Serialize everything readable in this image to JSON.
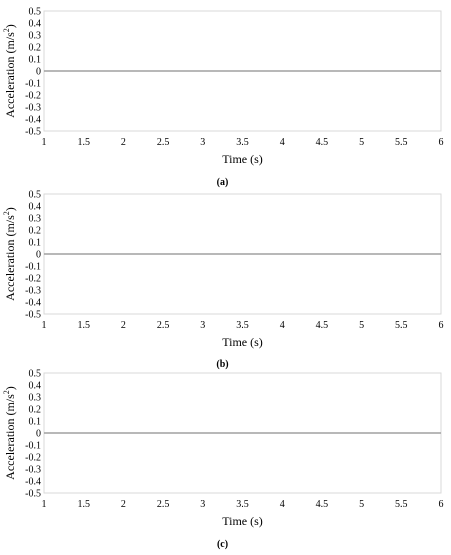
{
  "chart_data": [
    {
      "type": "line",
      "panel_label": "(a)",
      "xlabel": "Time (s)",
      "ylabel": "Acceleration (m/s",
      "ylabel_sup": "2",
      "ylabel_close": ")",
      "xlim": [
        1,
        6
      ],
      "ylim": [
        -0.5,
        0.5
      ],
      "x_ticks": [
        "1",
        "1.5",
        "2",
        "2.5",
        "3",
        "3.5",
        "4",
        "4.5",
        "5",
        "5.5",
        "6"
      ],
      "y_ticks": [
        "0.5",
        "0.4",
        "0.3",
        "0.2",
        "0.1",
        "0",
        "-0.1",
        "-0.2",
        "-0.3",
        "-0.4",
        "-0.5"
      ],
      "grid": false,
      "series": [
        {
          "x": [
            1,
            6
          ],
          "y": [
            0,
            0
          ]
        }
      ],
      "colors": {
        "series": "#a0a0a0"
      }
    },
    {
      "type": "line",
      "panel_label": "(b)",
      "xlabel": "Time (s)",
      "ylabel": "Acceleration (m/s",
      "ylabel_sup": "2",
      "ylabel_close": ")",
      "xlim": [
        1,
        6
      ],
      "ylim": [
        -0.5,
        0.5
      ],
      "x_ticks": [
        "1",
        "1.5",
        "2",
        "2.5",
        "3",
        "3.5",
        "4",
        "4.5",
        "5",
        "5.5",
        "6"
      ],
      "y_ticks": [
        "0.5",
        "0.4",
        "0.3",
        "0.2",
        "0.1",
        "0",
        "-0.1",
        "-0.2",
        "-0.3",
        "-0.4",
        "-0.5"
      ],
      "grid": false,
      "series": [
        {
          "x": [
            1,
            6
          ],
          "y": [
            0,
            0
          ]
        }
      ],
      "colors": {
        "series": "#a0a0a0"
      }
    },
    {
      "type": "line",
      "panel_label": "(c)",
      "xlabel": "Time (s)",
      "ylabel": "Acceleration (m/s",
      "ylabel_sup": "2",
      "ylabel_close": ")",
      "xlim": [
        1,
        6
      ],
      "ylim": [
        -0.5,
        0.5
      ],
      "x_ticks": [
        "1",
        "1.5",
        "2",
        "2.5",
        "3",
        "3.5",
        "4",
        "4.5",
        "5",
        "5.5",
        "6"
      ],
      "y_ticks": [
        "0.5",
        "0.4",
        "0.3",
        "0.2",
        "0.1",
        "0",
        "-0.1",
        "-0.2",
        "-0.3",
        "-0.4",
        "-0.5"
      ],
      "grid": false,
      "series": [
        {
          "x": [
            1,
            6
          ],
          "y": [
            0,
            0
          ]
        }
      ],
      "colors": {
        "series": "#a0a0a0"
      }
    }
  ]
}
